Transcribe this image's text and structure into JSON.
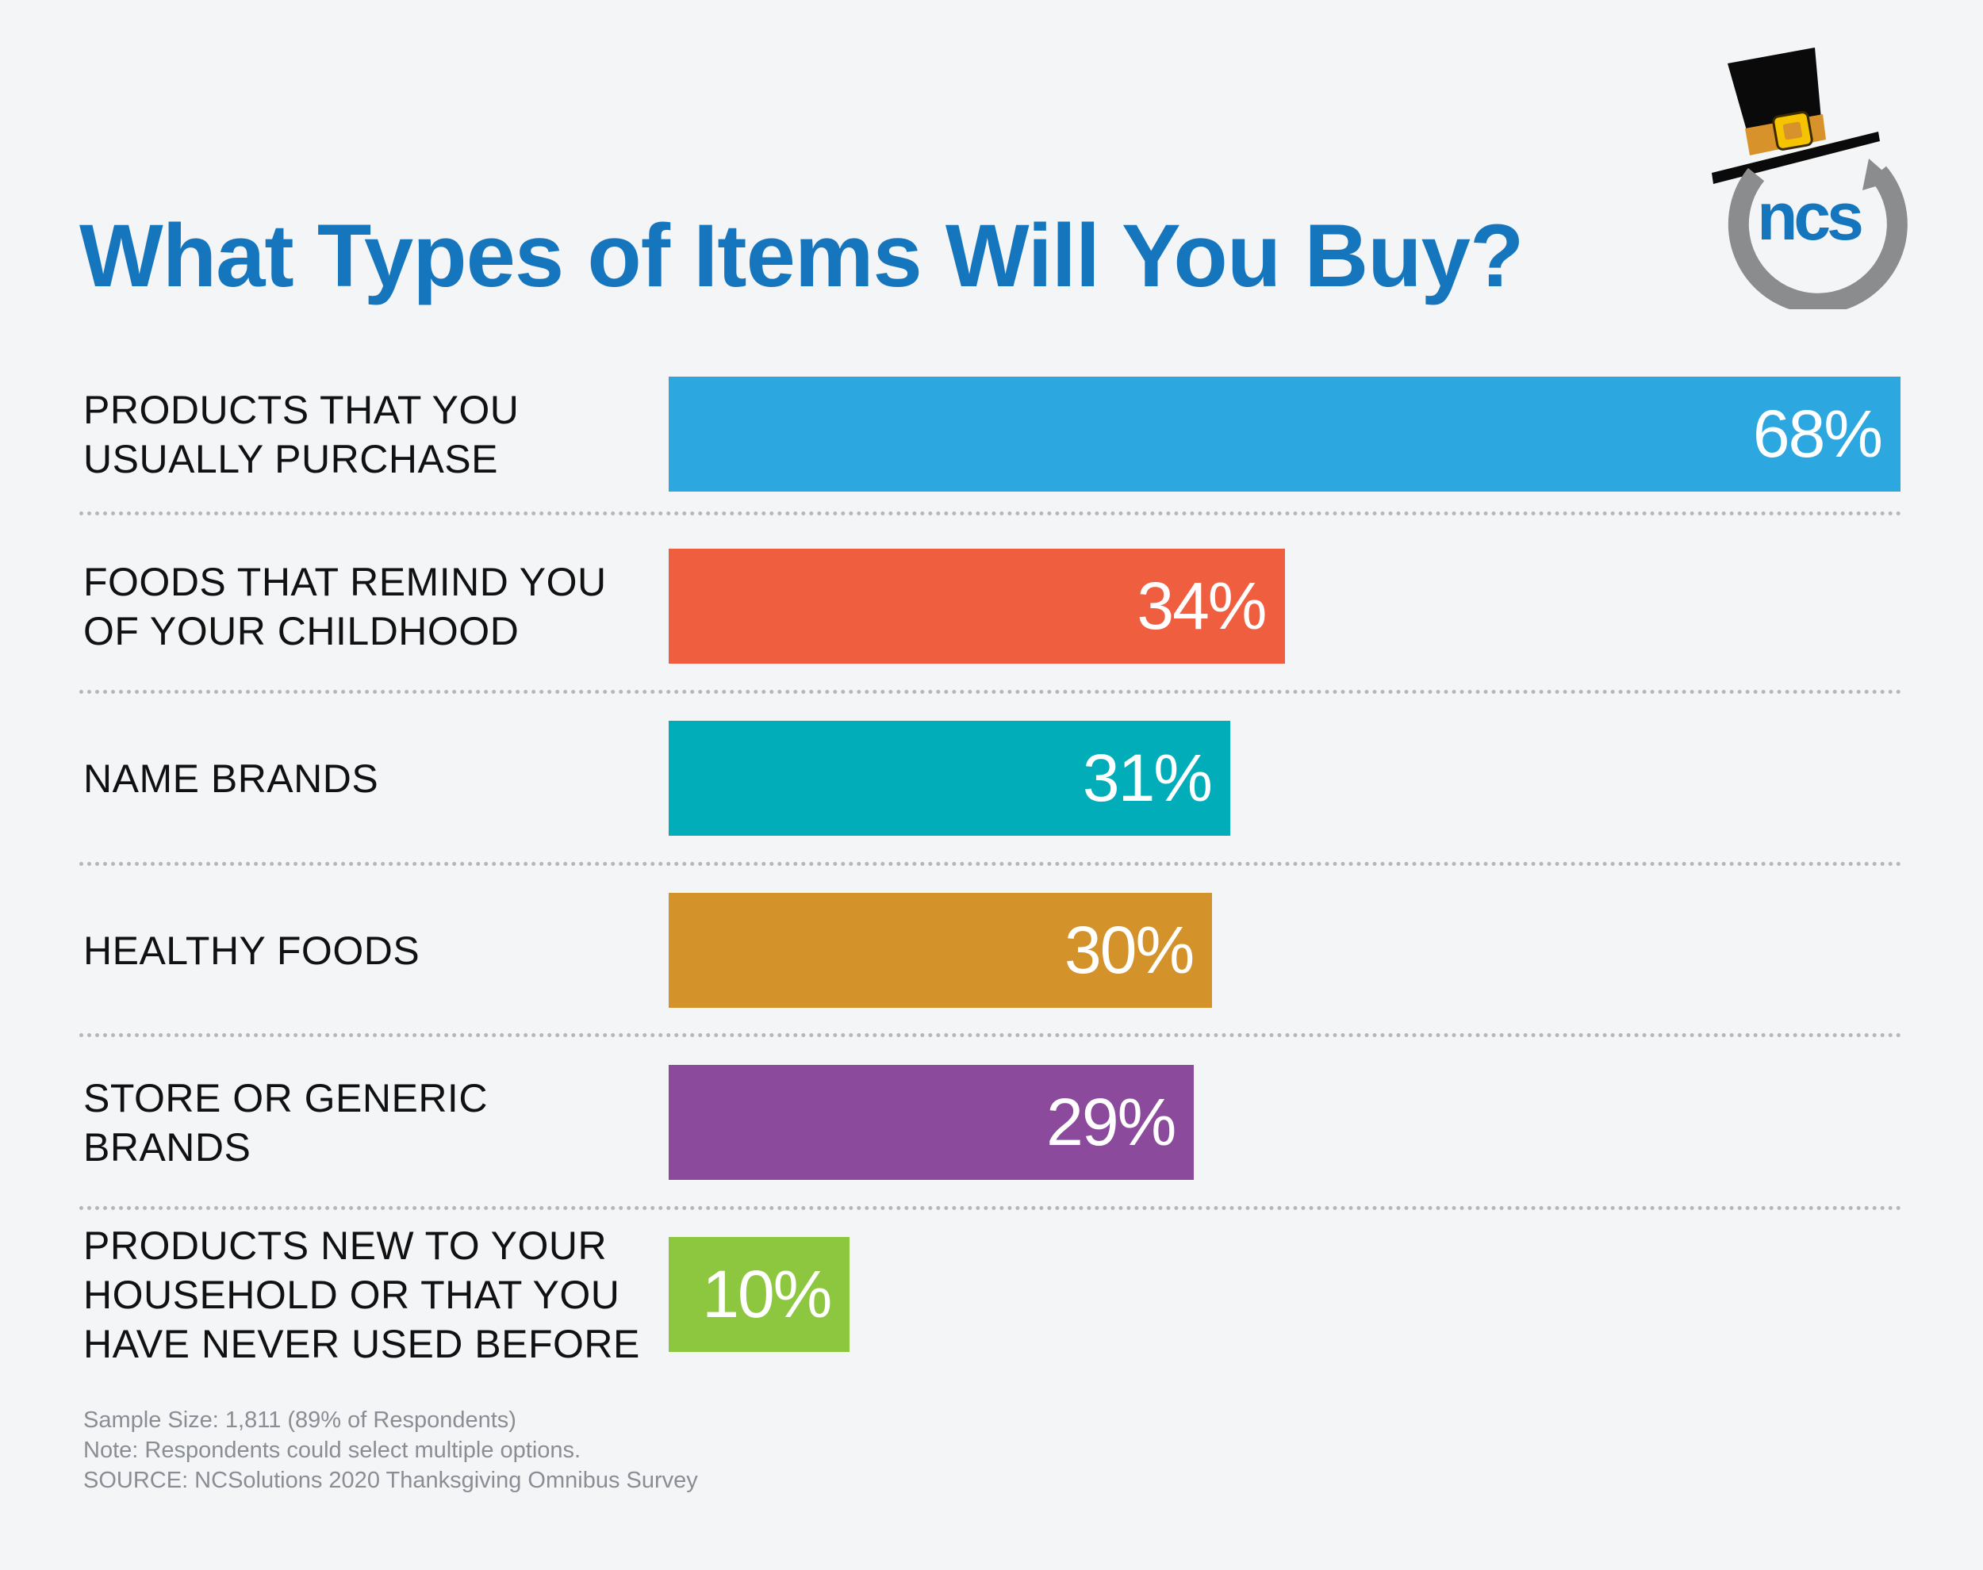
{
  "title": "What Types of Items Will You Buy?",
  "logo": {
    "text": "ncs"
  },
  "chart_data": {
    "type": "bar",
    "orientation": "horizontal",
    "title": "What Types of Items Will You Buy?",
    "xlabel": "",
    "ylabel": "",
    "xlim": [
      0,
      68
    ],
    "categories": [
      "PRODUCTS THAT YOU USUALLY PURCHASE",
      "FOODS THAT REMIND YOU OF YOUR CHILDHOOD",
      "NAME BRANDS",
      "HEALTHY FOODS",
      "STORE OR GENERIC BRANDS",
      "PRODUCTS NEW TO YOUR HOUSEHOLD OR THAT YOU HAVE NEVER USED BEFORE"
    ],
    "label_lines": [
      [
        "PRODUCTS THAT YOU",
        "USUALLY PURCHASE"
      ],
      [
        "FOODS THAT REMIND YOU",
        "OF YOUR CHILDHOOD"
      ],
      [
        "NAME BRANDS"
      ],
      [
        "HEALTHY FOODS"
      ],
      [
        "STORE OR GENERIC",
        "BRANDS"
      ],
      [
        "PRODUCTS NEW TO YOUR",
        "HOUSEHOLD OR THAT YOU",
        "HAVE NEVER USED BEFORE"
      ]
    ],
    "values": [
      68,
      34,
      31,
      30,
      29,
      10
    ],
    "value_labels": [
      "68%",
      "34%",
      "31%",
      "30%",
      "29%",
      "10%"
    ],
    "colors": [
      "#2ca7df",
      "#f05e40",
      "#00adb9",
      "#d4922a",
      "#8b4a9c",
      "#8dc63f"
    ]
  },
  "footnotes": [
    "Sample Size: 1,811 (89% of Respondents)",
    "Note: Respondents could select multiple options.",
    "SOURCE: NCSolutions 2020 Thanksgiving Omnibus Survey"
  ]
}
